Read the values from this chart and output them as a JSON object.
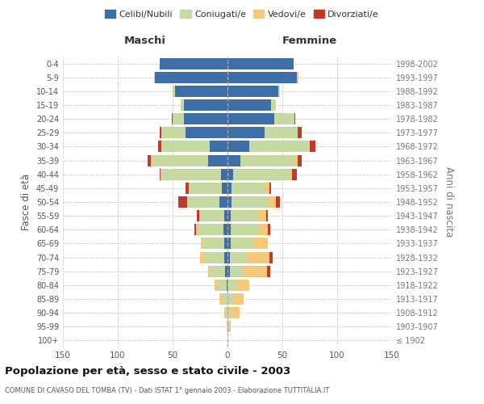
{
  "age_groups": [
    "100+",
    "95-99",
    "90-94",
    "85-89",
    "80-84",
    "75-79",
    "70-74",
    "65-69",
    "60-64",
    "55-59",
    "50-54",
    "45-49",
    "40-44",
    "35-39",
    "30-34",
    "25-29",
    "20-24",
    "15-19",
    "10-14",
    "5-9",
    "0-4"
  ],
  "birth_years": [
    "≤ 1902",
    "1903-1907",
    "1908-1912",
    "1913-1917",
    "1918-1922",
    "1923-1927",
    "1928-1932",
    "1933-1937",
    "1938-1942",
    "1943-1947",
    "1948-1952",
    "1953-1957",
    "1958-1962",
    "1963-1967",
    "1968-1972",
    "1973-1977",
    "1978-1982",
    "1983-1987",
    "1988-1992",
    "1993-1997",
    "1998-2002"
  ],
  "male": {
    "celibi": [
      0,
      0,
      0,
      0,
      1,
      2,
      3,
      3,
      4,
      3,
      7,
      5,
      6,
      18,
      16,
      38,
      40,
      40,
      48,
      66,
      62
    ],
    "coniugati": [
      0,
      1,
      2,
      5,
      8,
      14,
      18,
      19,
      23,
      22,
      30,
      30,
      55,
      52,
      44,
      22,
      10,
      3,
      2,
      1,
      0
    ],
    "vedovi": [
      0,
      0,
      1,
      2,
      3,
      2,
      4,
      2,
      2,
      1,
      0,
      0,
      0,
      0,
      0,
      0,
      0,
      0,
      0,
      0,
      0
    ],
    "divorziati": [
      0,
      0,
      0,
      0,
      0,
      0,
      0,
      0,
      1,
      2,
      8,
      3,
      1,
      3,
      3,
      2,
      1,
      0,
      0,
      0,
      0
    ]
  },
  "female": {
    "nubili": [
      0,
      0,
      0,
      0,
      0,
      2,
      2,
      3,
      3,
      3,
      4,
      4,
      5,
      12,
      20,
      34,
      43,
      40,
      46,
      63,
      60
    ],
    "coniugate": [
      0,
      1,
      3,
      5,
      8,
      12,
      16,
      20,
      24,
      24,
      32,
      30,
      52,
      50,
      55,
      30,
      18,
      4,
      2,
      2,
      0
    ],
    "vedove": [
      0,
      2,
      8,
      10,
      12,
      22,
      20,
      14,
      10,
      8,
      8,
      4,
      2,
      2,
      0,
      0,
      0,
      0,
      0,
      0,
      0
    ],
    "divorziate": [
      0,
      0,
      0,
      0,
      0,
      3,
      3,
      0,
      2,
      2,
      4,
      2,
      4,
      4,
      5,
      4,
      1,
      0,
      0,
      0,
      0
    ]
  },
  "colors": {
    "celibi": "#3d6ea8",
    "coniugati": "#c5d9a0",
    "vedovi": "#f5c97a",
    "divorziati": "#c0392b"
  },
  "xlim": 150,
  "title": "Popolazione per età, sesso e stato civile - 2003",
  "subtitle": "COMUNE DI CAVASO DEL TOMBA (TV) - Dati ISTAT 1° gennaio 2003 - Elaborazione TUTTITALIA.IT",
  "ylabel_left": "Fasce di età",
  "ylabel_right": "Anni di nascita",
  "xlabel_male": "Maschi",
  "xlabel_female": "Femmine"
}
